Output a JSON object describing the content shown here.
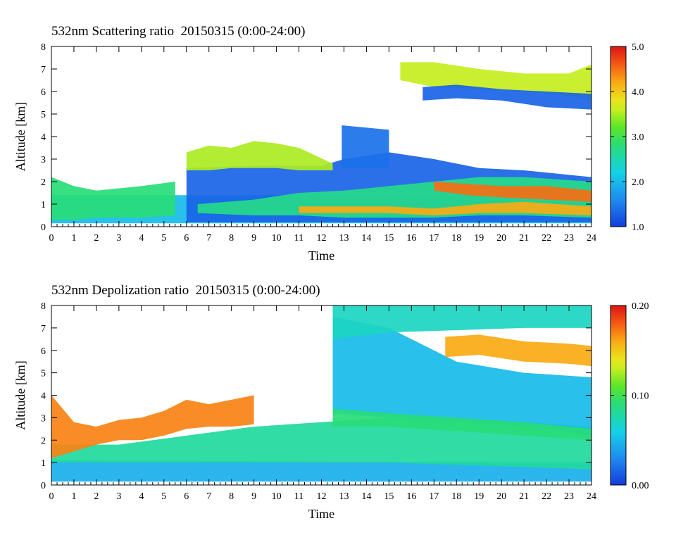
{
  "chart_data": [
    {
      "type": "heatmap",
      "title": "532nm Scattering ratio  20150315 (0:00-24:00)",
      "xlabel": "Time",
      "ylabel": "Altitude [km]",
      "xlim": [
        0,
        24
      ],
      "ylim": [
        0,
        8
      ],
      "x_ticks": [
        "0",
        "1",
        "2",
        "3",
        "4",
        "5",
        "6",
        "7",
        "8",
        "9",
        "10",
        "11",
        "12",
        "13",
        "14",
        "15",
        "16",
        "17",
        "18",
        "19",
        "20",
        "21",
        "22",
        "23",
        "24"
      ],
      "y_ticks": [
        "0",
        "1",
        "2",
        "3",
        "4",
        "5",
        "6",
        "7",
        "8"
      ],
      "colorbar": {
        "min": 1.0,
        "max": 5.0,
        "ticks": [
          "1.0",
          "2.0",
          "3.0",
          "4.0",
          "5.0"
        ]
      },
      "regions": [
        {
          "kind": "band",
          "value": 2.0,
          "x": [
            0,
            24
          ],
          "y0": [
            0.15,
            0.15
          ],
          "y1": [
            1.4,
            1.4
          ]
        },
        {
          "kind": "band",
          "value": 2.8,
          "x": [
            0,
            1,
            2,
            4,
            5.5
          ],
          "y0": [
            0.3,
            0.3,
            0.4,
            0.4,
            0.5
          ],
          "y1": [
            2.2,
            1.8,
            1.6,
            1.8,
            2.0
          ]
        },
        {
          "kind": "band",
          "value": 1.3,
          "x": [
            6,
            9,
            12,
            13,
            15,
            17,
            19,
            21,
            24
          ],
          "y0": [
            0.2,
            0.2,
            0.2,
            0.2,
            0.2,
            0.2,
            0.2,
            0.2,
            0.2
          ],
          "y1": [
            2.6,
            2.7,
            2.7,
            3.0,
            3.3,
            3.0,
            2.6,
            2.5,
            2.2
          ]
        },
        {
          "kind": "band",
          "value": 1.4,
          "x": [
            12.9,
            15
          ],
          "y0": [
            2.6,
            2.6
          ],
          "y1": [
            4.5,
            4.3
          ]
        },
        {
          "kind": "band",
          "value": 2.7,
          "x": [
            6.5,
            9,
            11,
            13,
            15,
            17,
            19,
            21,
            24
          ],
          "y0": [
            0.6,
            0.5,
            0.5,
            0.4,
            0.4,
            0.4,
            0.5,
            0.5,
            0.4
          ],
          "y1": [
            1.0,
            1.2,
            1.5,
            1.6,
            1.8,
            2.0,
            2.2,
            2.2,
            2.0
          ]
        },
        {
          "kind": "band",
          "value": 4.2,
          "x": [
            11,
            13,
            15,
            17,
            19,
            21,
            24
          ],
          "y0": [
            0.6,
            0.6,
            0.6,
            0.5,
            0.6,
            0.6,
            0.5
          ],
          "y1": [
            0.9,
            0.9,
            0.9,
            0.8,
            1.0,
            1.1,
            0.9
          ]
        },
        {
          "kind": "band",
          "value": 4.5,
          "x": [
            17,
            18.5,
            20,
            22,
            24
          ],
          "y0": [
            1.6,
            1.4,
            1.3,
            1.2,
            1.1
          ],
          "y1": [
            2.0,
            1.9,
            1.8,
            1.8,
            1.6
          ]
        },
        {
          "kind": "band",
          "value": 3.5,
          "x": [
            6,
            7,
            8,
            9,
            10,
            11,
            12.5
          ],
          "y0": [
            2.5,
            2.5,
            2.6,
            2.6,
            2.6,
            2.5,
            2.5
          ],
          "y1": [
            3.3,
            3.6,
            3.5,
            3.8,
            3.7,
            3.5,
            2.8
          ]
        },
        {
          "kind": "band",
          "value": 3.6,
          "x": [
            15.5,
            17,
            19,
            21,
            23,
            24
          ],
          "y0": [
            6.5,
            6.2,
            6.1,
            6.0,
            5.8,
            5.6
          ],
          "y1": [
            7.3,
            7.3,
            7.0,
            6.8,
            6.8,
            7.2
          ]
        },
        {
          "kind": "band",
          "value": 1.3,
          "x": [
            16.5,
            18,
            20,
            22,
            24
          ],
          "y0": [
            5.6,
            5.7,
            5.6,
            5.3,
            5.2
          ],
          "y1": [
            6.2,
            6.3,
            6.1,
            6.0,
            5.9
          ]
        }
      ]
    },
    {
      "type": "heatmap",
      "title": "532nm Depolization ratio  20150315 (0:00-24:00)",
      "xlabel": "Time",
      "ylabel": "Altitude [km]",
      "xlim": [
        0,
        24
      ],
      "ylim": [
        0,
        8
      ],
      "x_ticks": [
        "0",
        "1",
        "2",
        "3",
        "4",
        "5",
        "6",
        "7",
        "8",
        "9",
        "10",
        "11",
        "12",
        "13",
        "14",
        "15",
        "16",
        "17",
        "18",
        "19",
        "20",
        "21",
        "22",
        "23",
        "24"
      ],
      "y_ticks": [
        "0",
        "1",
        "2",
        "3",
        "4",
        "5",
        "6",
        "7",
        "8"
      ],
      "colorbar": {
        "min": 0.0,
        "max": 0.2,
        "ticks": [
          "0.00",
          "0.10",
          "0.20"
        ]
      },
      "regions": [
        {
          "kind": "band",
          "value": 0.045,
          "x": [
            0,
            24
          ],
          "y0": [
            0.15,
            0.15
          ],
          "y1": [
            1.1,
            1.0
          ]
        },
        {
          "kind": "band",
          "value": 0.08,
          "x": [
            0,
            3,
            6,
            9,
            12,
            15,
            18,
            21,
            24
          ],
          "y0": [
            1.0,
            1.0,
            1.0,
            1.0,
            1.0,
            1.0,
            0.9,
            0.8,
            0.7
          ],
          "y1": [
            1.8,
            1.8,
            2.2,
            2.6,
            2.8,
            3.0,
            3.0,
            2.8,
            2.6
          ]
        },
        {
          "kind": "band",
          "value": 0.17,
          "x": [
            0,
            1,
            2,
            3,
            4,
            5,
            6,
            7,
            8,
            9
          ],
          "y0": [
            1.2,
            1.5,
            1.8,
            2.0,
            2.0,
            2.2,
            2.5,
            2.6,
            2.6,
            2.7
          ],
          "y1": [
            4.0,
            2.8,
            2.6,
            2.9,
            3.0,
            3.3,
            3.8,
            3.6,
            3.8,
            4.0
          ]
        },
        {
          "kind": "band",
          "value": 0.05,
          "x": [
            12.5,
            15,
            18,
            21,
            24
          ],
          "y0": [
            3.2,
            3.0,
            2.8,
            2.6,
            2.2
          ],
          "y1": [
            7.5,
            7.0,
            5.5,
            5.0,
            4.8
          ]
        },
        {
          "kind": "band",
          "value": 0.09,
          "x": [
            12.5,
            15,
            18,
            21,
            24
          ],
          "y0": [
            2.6,
            2.6,
            2.4,
            2.2,
            2.0
          ],
          "y1": [
            3.4,
            3.2,
            3.0,
            2.8,
            2.5
          ]
        },
        {
          "kind": "band",
          "value": 0.16,
          "x": [
            17.5,
            19,
            21,
            23,
            24
          ],
          "y0": [
            5.7,
            5.8,
            5.5,
            5.4,
            5.3
          ],
          "y1": [
            6.6,
            6.7,
            6.4,
            6.3,
            6.2
          ]
        },
        {
          "kind": "band",
          "value": 0.07,
          "x": [
            12.5,
            15,
            18,
            21,
            24
          ],
          "y0": [
            6.5,
            6.8,
            6.9,
            7.0,
            7.0
          ],
          "y1": [
            8.0,
            8.0,
            8.0,
            8.0,
            8.0
          ]
        }
      ]
    }
  ]
}
